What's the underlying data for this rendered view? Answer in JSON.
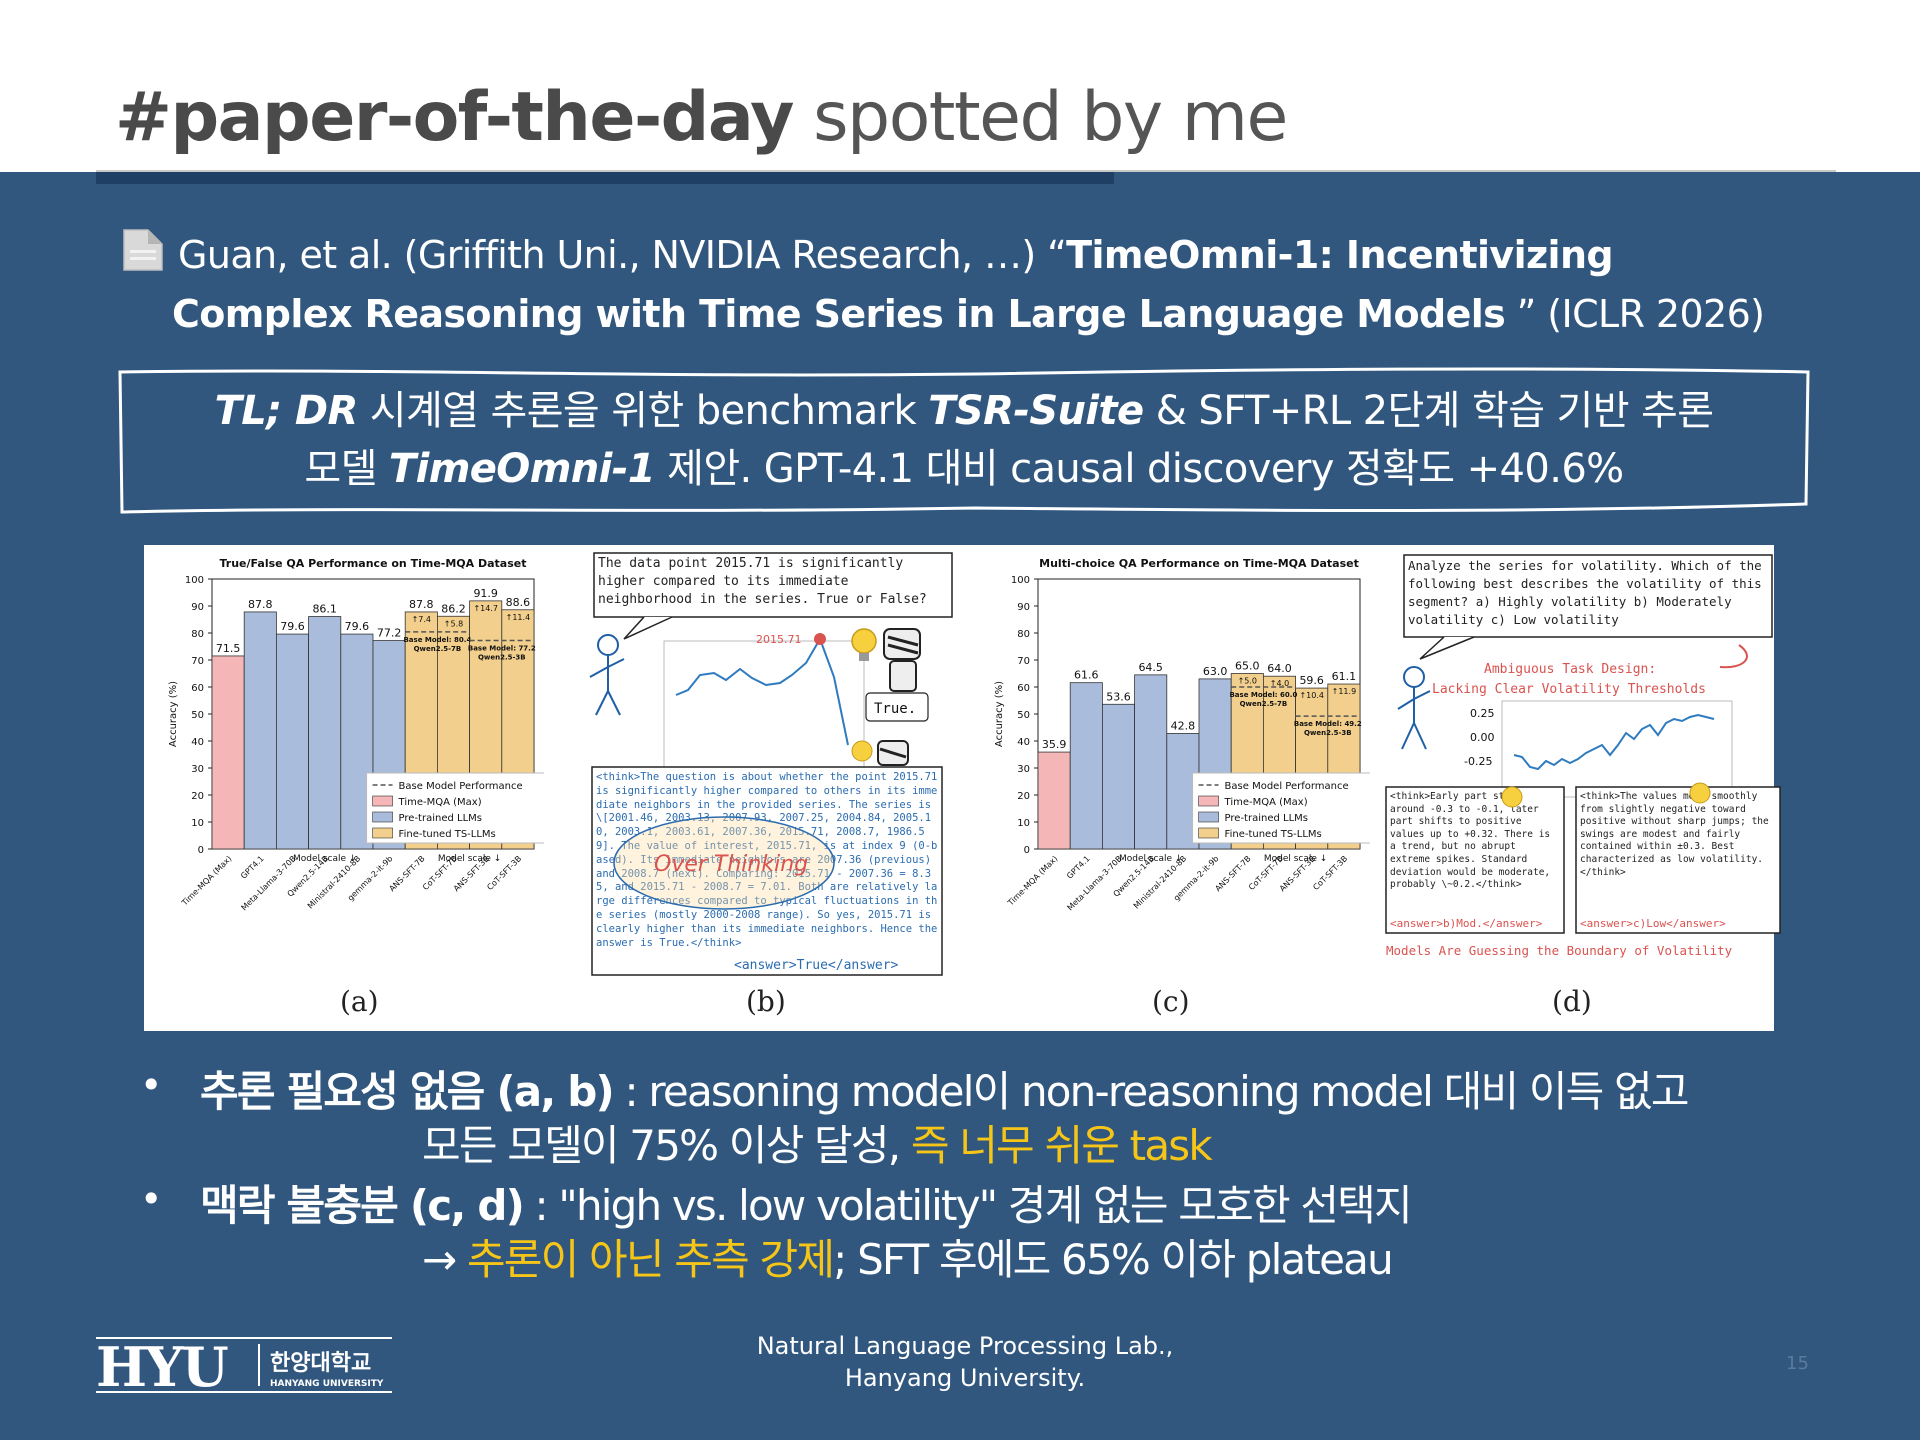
{
  "header": {
    "title_bold": "#paper-of-the-day",
    "title_light": " spotted by me"
  },
  "citation": {
    "icon": "document-icon",
    "line1_plain": "Guan, et al. (Griffith Uni., NVIDIA Research, …) “",
    "line1_bold": "TimeOmni-1: Incentivizing",
    "line2_bold": "Complex Reasoning with Time Series in Large Language Models",
    "line2_plain": " ” (ICLR 2026)"
  },
  "tldr": {
    "label": "TL; DR",
    "line1_a": " 시계열 추론을 위한 benchmark ",
    "suite": "TSR-Suite",
    "line1_b": " & SFT+RL 2단계 학습 기반 추론",
    "line2_a": "모델 ",
    "model": "TimeOmni-1",
    "line2_b": " 제안. GPT-4.1 대비 causal discovery 정확도 +40.6%"
  },
  "figure": {
    "captions": [
      "(a)",
      "(b)",
      "(c)",
      "(d)"
    ],
    "panel_b": {
      "question": "The data point 2015.71 is significantly higher compared to its immediate neighborhood in the series. True or False?",
      "peak_label": "2015.71",
      "answer_bubble": "True.",
      "overthinking": "Over Thinking",
      "think": "<think>The question is about whether the point 2015.71 is significantly higher compared to others in its immediate neighbors in the provided series. The series is \\[2001.46, 2003.13, 2007.93, 2007.25, 2004.84, 2005.10, 2003.1, 2003.61, 2007.36, 2015.71, 2008.7, 1986.59]. The value of interest, 2015.71, is at index 9 (0-based). Its immediate neighbors are 2007.36 (previous) and 2008.7 (next). Comparing: 2015.71 - 2007.36 = 8.35, and 2015.71 - 2008.7 = 7.01. Both are relatively large differences compared to typical fluctuations in the series (mostly 2000-2008 range). So yes, 2015.71 is clearly higher than its immediate neighbors. Hence the answer is True.</think>",
      "answer_tag": "<answer>True</answer>"
    },
    "panel_d": {
      "question": "Analyze the series for volatility. Which of the following best describes the volatility of this segment? a) Highly volatility b) Moderately volatility c) Low volatility",
      "design_note_1": "Ambiguous Task Design:",
      "design_note_2": "Lacking Clear Volatility Thresholds",
      "y_ticks": [
        "0.25",
        "0.00",
        "-0.25"
      ],
      "left_think": "<think>Early part stays around -0.3 to -0.1, later part shifts to positive values up to +0.32. There is a trend, but no abrupt extreme spikes. Standard deviation would be moderate, probably \\~0.2.</think>",
      "left_answer": "<answer>b)Mod.</answer>",
      "right_think": "<think>The values move smoothly from slightly negative toward positive without sharp jumps; the swings are modest and fairly contained within ±0.3. Best characterized as low volatility.</think>",
      "right_answer": "<answer>c)Low</answer>",
      "footer": "Models Are Guessing the Boundary of Volatility"
    }
  },
  "chart_data": [
    {
      "type": "bar",
      "title": "True/False QA Performance on Time-MQA Dataset",
      "ylabel": "Accuracy (%)",
      "xlabel_1": "Model scale ↓",
      "xlabel_2": "Model scale ↓",
      "ylim": [
        0,
        100
      ],
      "yticks": [
        0,
        10,
        20,
        30,
        40,
        50,
        60,
        70,
        80,
        90,
        100
      ],
      "categories": [
        "Time-MQA (Max)",
        "GPT4.1",
        "Meta-Llama-3-70B",
        "Qwen2.5-14B",
        "Ministral-2410-8B",
        "gemma-2-it-9b",
        "ANS-SFT-7B",
        "CoT-SFT-7B",
        "ANS-SFT-3B",
        "CoT-SFT-3B"
      ],
      "values": [
        71.5,
        87.8,
        79.6,
        86.1,
        79.6,
        77.2,
        87.8,
        86.2,
        91.9,
        88.6
      ],
      "groups": [
        "time-mqa",
        "pretrained",
        "pretrained",
        "pretrained",
        "pretrained",
        "pretrained",
        "finetuned",
        "finetuned",
        "finetuned",
        "finetuned"
      ],
      "gains": [
        "",
        "",
        "",
        "",
        "",
        "",
        "↑7.4",
        "↑5.8",
        "↑14.7",
        "↑11.4"
      ],
      "base_model": [
        {
          "name": "Base Model: 80.4 Qwen2.5-7B",
          "value": 80.4
        },
        {
          "name": "Base Model: 77.2 Qwen2.5-3B",
          "value": 77.2
        }
      ],
      "legend": [
        "Base Model Performance",
        "Time-MQA (Max)",
        "Pre-trained LLMs",
        "Fine-tuned TS-LLMs"
      ],
      "colors": {
        "time-mqa": "#f4b6b6",
        "pretrained": "#a9bcdb",
        "finetuned": "#f2cf8c"
      }
    },
    {
      "type": "bar",
      "title": "Multi-choice QA Performance on Time-MQA Dataset",
      "ylabel": "Accuracy (%)",
      "xlabel_1": "Model scale ↓",
      "xlabel_2": "Model scale ↓",
      "ylim": [
        0,
        100
      ],
      "yticks": [
        0,
        10,
        20,
        30,
        40,
        50,
        60,
        70,
        80,
        90,
        100
      ],
      "categories": [
        "Time-MQA (Max)",
        "GPT4.1",
        "Meta-Llama-3-70B",
        "Qwen2.5-14B",
        "Ministral-2410-8B",
        "gemma-2-it-9b",
        "ANS-SFT-7B",
        "CoT-SFT-7B",
        "ANS-SFT-3B",
        "CoT-SFT-3B"
      ],
      "values": [
        35.9,
        61.6,
        53.6,
        64.5,
        42.8,
        63.0,
        65.0,
        64.0,
        59.6,
        61.1
      ],
      "groups": [
        "time-mqa",
        "pretrained",
        "pretrained",
        "pretrained",
        "pretrained",
        "pretrained",
        "finetuned",
        "finetuned",
        "finetuned",
        "finetuned"
      ],
      "gains": [
        "",
        "",
        "",
        "",
        "",
        "",
        "↑5.0",
        "↑4.0",
        "↑10.4",
        "↑11.9"
      ],
      "base_model": [
        {
          "name": "Base Model: 60.0 Qwen2.5-7B",
          "value": 60.0
        },
        {
          "name": "Base Model: 49.2 Qwen2.5-3B",
          "value": 49.2
        }
      ],
      "legend": [
        "Base Model Performance",
        "Time-MQA (Max)",
        "Pre-trained LLMs",
        "Fine-tuned TS-LLMs"
      ],
      "colors": {
        "time-mqa": "#f4b6b6",
        "pretrained": "#a9bcdb",
        "finetuned": "#f2cf8c"
      }
    }
  ],
  "bullets": [
    {
      "head": "추론 필요성 없음 (a, b)",
      "rest1": " : reasoning model이 non-reasoning model 대비 이득 없고",
      "line2_plain": "모든 모델이 75% 이상 달성, ",
      "line2_yellow": "즉 너무 쉬운 task"
    },
    {
      "head": "맥락 불충분 (c, d)",
      "rest1": " : \"high vs. low volatility\" 경계 없는 모호한 선택지",
      "line2_arrow": "→ ",
      "line2_yellow": "추론이 아닌 추측 강제",
      "line2_plain": "; SFT 후에도 65% 이하 plateau"
    }
  ],
  "footer": {
    "logo_text": "HYU",
    "logo_korean": "한양대학교",
    "logo_english": "HANYANG UNIVERSITY",
    "lab_line1": "Natural Language Processing Lab.,",
    "lab_line2": "Hanyang University.",
    "page_number": "15"
  }
}
